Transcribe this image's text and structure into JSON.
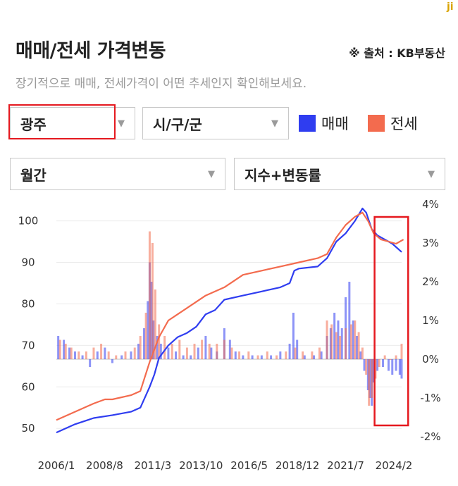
{
  "corner_mark": "ji",
  "header": {
    "title": "매매/전세 가격변동",
    "source": "※ 출처 : KB부동산",
    "subtitle": "장기적으로 매매, 전세가격이 어떤 추세인지 확인해보세요."
  },
  "filters": {
    "region": "광주",
    "district": "시/구/군",
    "period": "월간",
    "metric": "지수+변동률"
  },
  "legend": {
    "sale": "매매",
    "jeonse": "전세"
  },
  "colors": {
    "sale": "#2f3df0",
    "jeonse": "#f36b4e",
    "highlight": "#e5191f"
  },
  "chart_data": {
    "type": "line",
    "x_tick_labels": [
      "2006/1",
      "2008/8",
      "2011/3",
      "2013/10",
      "2016/5",
      "2018/12",
      "2021/7",
      "2024/2"
    ],
    "x_range": [
      "2006/1",
      "2024/7"
    ],
    "y_left_ticks": [
      "50",
      "60",
      "70",
      "80",
      "90",
      "100"
    ],
    "y_left_range": [
      48,
      104
    ],
    "y_right_ticks": [
      "4%",
      "3%",
      "2%",
      "1%",
      "0%",
      "-1%",
      "-2%"
    ],
    "y_right_range": [
      -2,
      4
    ],
    "grid": true,
    "series": [
      {
        "name": "매매",
        "kind": "index-line",
        "points": [
          [
            2006.0,
            49.0
          ],
          [
            2007.0,
            51.0
          ],
          [
            2008.0,
            52.5
          ],
          [
            2009.0,
            53.2
          ],
          [
            2010.0,
            54.0
          ],
          [
            2010.5,
            55.0
          ],
          [
            2011.0,
            60.0
          ],
          [
            2011.25,
            63.0
          ],
          [
            2011.5,
            67.0
          ],
          [
            2012.0,
            70.0
          ],
          [
            2012.5,
            72.0
          ],
          [
            2013.0,
            73.0
          ],
          [
            2013.5,
            74.5
          ],
          [
            2014.0,
            77.5
          ],
          [
            2014.5,
            78.5
          ],
          [
            2015.0,
            81.0
          ],
          [
            2016.0,
            82.0
          ],
          [
            2017.0,
            83.0
          ],
          [
            2018.0,
            84.0
          ],
          [
            2018.5,
            85.0
          ],
          [
            2018.75,
            88.0
          ],
          [
            2019.0,
            88.5
          ],
          [
            2020.0,
            89.0
          ],
          [
            2020.5,
            91.0
          ],
          [
            2021.0,
            95.0
          ],
          [
            2021.5,
            97.0
          ],
          [
            2022.0,
            100.0
          ],
          [
            2022.4,
            103.0
          ],
          [
            2022.6,
            102.0
          ],
          [
            2022.9,
            98.0
          ],
          [
            2023.2,
            96.5
          ],
          [
            2023.6,
            95.5
          ],
          [
            2024.0,
            94.5
          ],
          [
            2024.5,
            92.5
          ]
        ]
      },
      {
        "name": "전세",
        "kind": "index-line",
        "points": [
          [
            2006.0,
            52.0
          ],
          [
            2007.0,
            54.0
          ],
          [
            2008.0,
            56.0
          ],
          [
            2008.6,
            57.0
          ],
          [
            2009.0,
            57.0
          ],
          [
            2010.0,
            58.0
          ],
          [
            2010.5,
            59.0
          ],
          [
            2011.0,
            66.0
          ],
          [
            2011.5,
            72.0
          ],
          [
            2012.0,
            76.0
          ],
          [
            2013.0,
            79.0
          ],
          [
            2014.0,
            82.0
          ],
          [
            2015.0,
            84.0
          ],
          [
            2016.0,
            87.0
          ],
          [
            2017.0,
            88.0
          ],
          [
            2018.0,
            89.0
          ],
          [
            2019.0,
            90.0
          ],
          [
            2020.0,
            91.0
          ],
          [
            2020.5,
            92.0
          ],
          [
            2021.0,
            96.0
          ],
          [
            2021.5,
            99.0
          ],
          [
            2022.0,
            101.0
          ],
          [
            2022.4,
            102.0
          ],
          [
            2022.7,
            100.0
          ],
          [
            2023.0,
            97.0
          ],
          [
            2023.4,
            95.5
          ],
          [
            2023.8,
            95.0
          ],
          [
            2024.2,
            94.5
          ],
          [
            2024.6,
            95.5
          ]
        ]
      },
      {
        "name": "매매",
        "kind": "monthly-change-bars",
        "points": [
          [
            2006.1,
            0.6
          ],
          [
            2006.4,
            0.5
          ],
          [
            2006.7,
            0.3
          ],
          [
            2007.0,
            0.2
          ],
          [
            2007.4,
            0.1
          ],
          [
            2007.8,
            -0.2
          ],
          [
            2008.2,
            0.2
          ],
          [
            2008.6,
            0.3
          ],
          [
            2009.0,
            -0.1
          ],
          [
            2009.5,
            0.1
          ],
          [
            2010.0,
            0.2
          ],
          [
            2010.4,
            0.4
          ],
          [
            2010.7,
            0.8
          ],
          [
            2010.9,
            1.5
          ],
          [
            2011.0,
            2.5
          ],
          [
            2011.1,
            2.0
          ],
          [
            2011.2,
            1.0
          ],
          [
            2011.4,
            0.6
          ],
          [
            2011.6,
            0.4
          ],
          [
            2012.0,
            0.3
          ],
          [
            2012.4,
            0.2
          ],
          [
            2012.8,
            0.1
          ],
          [
            2013.2,
            0.1
          ],
          [
            2013.6,
            0.3
          ],
          [
            2014.0,
            0.6
          ],
          [
            2014.3,
            0.3
          ],
          [
            2014.6,
            0.2
          ],
          [
            2015.0,
            0.8
          ],
          [
            2015.3,
            0.5
          ],
          [
            2015.6,
            0.2
          ],
          [
            2016.0,
            0.1
          ],
          [
            2016.5,
            0.1
          ],
          [
            2017.0,
            0.1
          ],
          [
            2017.5,
            0.1
          ],
          [
            2018.0,
            0.2
          ],
          [
            2018.5,
            0.4
          ],
          [
            2018.7,
            1.2
          ],
          [
            2018.9,
            0.5
          ],
          [
            2019.3,
            0.1
          ],
          [
            2019.8,
            0.1
          ],
          [
            2020.2,
            0.2
          ],
          [
            2020.5,
            0.6
          ],
          [
            2020.7,
            0.8
          ],
          [
            2020.9,
            1.2
          ],
          [
            2021.1,
            1.0
          ],
          [
            2021.3,
            0.8
          ],
          [
            2021.5,
            1.6
          ],
          [
            2021.7,
            2.0
          ],
          [
            2021.9,
            1.0
          ],
          [
            2022.1,
            0.6
          ],
          [
            2022.3,
            0.2
          ],
          [
            2022.5,
            -0.3
          ],
          [
            2022.7,
            -0.8
          ],
          [
            2022.8,
            -1.0
          ],
          [
            2022.9,
            -1.2
          ],
          [
            2023.0,
            -0.6
          ],
          [
            2023.2,
            -0.3
          ],
          [
            2023.5,
            -0.2
          ],
          [
            2023.8,
            -0.3
          ],
          [
            2024.0,
            -0.4
          ],
          [
            2024.2,
            -0.3
          ],
          [
            2024.4,
            -0.4
          ],
          [
            2024.5,
            -0.5
          ]
        ]
      },
      {
        "name": "전세",
        "kind": "monthly-change-bars",
        "points": [
          [
            2006.2,
            0.5
          ],
          [
            2006.5,
            0.4
          ],
          [
            2006.8,
            0.3
          ],
          [
            2007.2,
            0.2
          ],
          [
            2007.6,
            0.2
          ],
          [
            2008.0,
            0.3
          ],
          [
            2008.4,
            0.4
          ],
          [
            2008.8,
            0.2
          ],
          [
            2009.2,
            0.1
          ],
          [
            2009.7,
            0.2
          ],
          [
            2010.2,
            0.3
          ],
          [
            2010.5,
            0.6
          ],
          [
            2010.8,
            1.2
          ],
          [
            2011.0,
            3.3
          ],
          [
            2011.15,
            3.0
          ],
          [
            2011.3,
            1.8
          ],
          [
            2011.5,
            0.9
          ],
          [
            2011.8,
            0.6
          ],
          [
            2012.2,
            0.4
          ],
          [
            2012.6,
            0.5
          ],
          [
            2013.0,
            0.3
          ],
          [
            2013.4,
            0.4
          ],
          [
            2013.8,
            0.5
          ],
          [
            2014.2,
            0.4
          ],
          [
            2014.6,
            0.4
          ],
          [
            2015.0,
            0.5
          ],
          [
            2015.4,
            0.3
          ],
          [
            2015.8,
            0.2
          ],
          [
            2016.3,
            0.2
          ],
          [
            2016.8,
            0.1
          ],
          [
            2017.3,
            0.2
          ],
          [
            2017.8,
            0.1
          ],
          [
            2018.3,
            0.2
          ],
          [
            2018.8,
            0.3
          ],
          [
            2019.2,
            0.2
          ],
          [
            2019.7,
            0.2
          ],
          [
            2020.1,
            0.3
          ],
          [
            2020.5,
            1.0
          ],
          [
            2020.75,
            0.9
          ],
          [
            2021.0,
            0.7
          ],
          [
            2021.2,
            0.6
          ],
          [
            2021.5,
            0.8
          ],
          [
            2021.8,
            0.9
          ],
          [
            2022.0,
            1.0
          ],
          [
            2022.2,
            0.7
          ],
          [
            2022.4,
            0.3
          ],
          [
            2022.6,
            -0.4
          ],
          [
            2022.75,
            -1.2
          ],
          [
            2022.9,
            -1.0
          ],
          [
            2023.1,
            -0.5
          ],
          [
            2023.3,
            -0.2
          ],
          [
            2023.6,
            0.1
          ],
          [
            2023.9,
            0.0
          ],
          [
            2024.2,
            0.1
          ],
          [
            2024.5,
            0.4
          ]
        ]
      }
    ]
  }
}
